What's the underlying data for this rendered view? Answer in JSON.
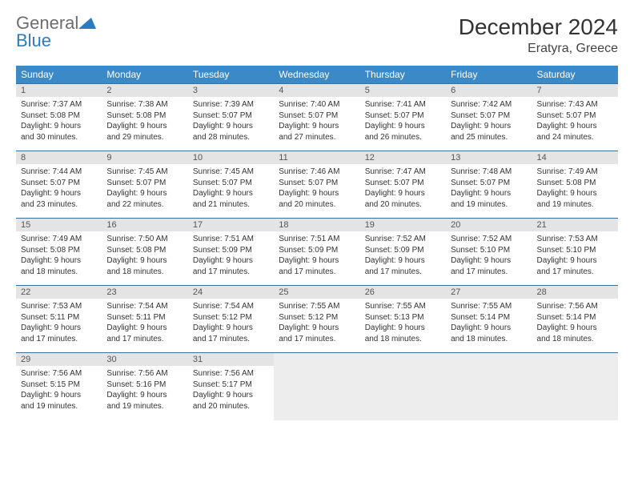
{
  "brand": {
    "part1": "General",
    "part2": "Blue"
  },
  "title": "December 2024",
  "location": "Eratyra, Greece",
  "colors": {
    "header_bg": "#3b89c7",
    "header_text": "#ffffff",
    "daynum_bg": "#e4e4e4",
    "rule": "#3b6f9e",
    "brand_gray": "#6d6d6d",
    "brand_blue": "#2b7bbf"
  },
  "weekdays": [
    "Sunday",
    "Monday",
    "Tuesday",
    "Wednesday",
    "Thursday",
    "Friday",
    "Saturday"
  ],
  "days": [
    {
      "n": "1",
      "sr": "Sunrise: 7:37 AM",
      "ss": "Sunset: 5:08 PM",
      "d1": "Daylight: 9 hours",
      "d2": "and 30 minutes."
    },
    {
      "n": "2",
      "sr": "Sunrise: 7:38 AM",
      "ss": "Sunset: 5:08 PM",
      "d1": "Daylight: 9 hours",
      "d2": "and 29 minutes."
    },
    {
      "n": "3",
      "sr": "Sunrise: 7:39 AM",
      "ss": "Sunset: 5:07 PM",
      "d1": "Daylight: 9 hours",
      "d2": "and 28 minutes."
    },
    {
      "n": "4",
      "sr": "Sunrise: 7:40 AM",
      "ss": "Sunset: 5:07 PM",
      "d1": "Daylight: 9 hours",
      "d2": "and 27 minutes."
    },
    {
      "n": "5",
      "sr": "Sunrise: 7:41 AM",
      "ss": "Sunset: 5:07 PM",
      "d1": "Daylight: 9 hours",
      "d2": "and 26 minutes."
    },
    {
      "n": "6",
      "sr": "Sunrise: 7:42 AM",
      "ss": "Sunset: 5:07 PM",
      "d1": "Daylight: 9 hours",
      "d2": "and 25 minutes."
    },
    {
      "n": "7",
      "sr": "Sunrise: 7:43 AM",
      "ss": "Sunset: 5:07 PM",
      "d1": "Daylight: 9 hours",
      "d2": "and 24 minutes."
    },
    {
      "n": "8",
      "sr": "Sunrise: 7:44 AM",
      "ss": "Sunset: 5:07 PM",
      "d1": "Daylight: 9 hours",
      "d2": "and 23 minutes."
    },
    {
      "n": "9",
      "sr": "Sunrise: 7:45 AM",
      "ss": "Sunset: 5:07 PM",
      "d1": "Daylight: 9 hours",
      "d2": "and 22 minutes."
    },
    {
      "n": "10",
      "sr": "Sunrise: 7:45 AM",
      "ss": "Sunset: 5:07 PM",
      "d1": "Daylight: 9 hours",
      "d2": "and 21 minutes."
    },
    {
      "n": "11",
      "sr": "Sunrise: 7:46 AM",
      "ss": "Sunset: 5:07 PM",
      "d1": "Daylight: 9 hours",
      "d2": "and 20 minutes."
    },
    {
      "n": "12",
      "sr": "Sunrise: 7:47 AM",
      "ss": "Sunset: 5:07 PM",
      "d1": "Daylight: 9 hours",
      "d2": "and 20 minutes."
    },
    {
      "n": "13",
      "sr": "Sunrise: 7:48 AM",
      "ss": "Sunset: 5:07 PM",
      "d1": "Daylight: 9 hours",
      "d2": "and 19 minutes."
    },
    {
      "n": "14",
      "sr": "Sunrise: 7:49 AM",
      "ss": "Sunset: 5:08 PM",
      "d1": "Daylight: 9 hours",
      "d2": "and 19 minutes."
    },
    {
      "n": "15",
      "sr": "Sunrise: 7:49 AM",
      "ss": "Sunset: 5:08 PM",
      "d1": "Daylight: 9 hours",
      "d2": "and 18 minutes."
    },
    {
      "n": "16",
      "sr": "Sunrise: 7:50 AM",
      "ss": "Sunset: 5:08 PM",
      "d1": "Daylight: 9 hours",
      "d2": "and 18 minutes."
    },
    {
      "n": "17",
      "sr": "Sunrise: 7:51 AM",
      "ss": "Sunset: 5:09 PM",
      "d1": "Daylight: 9 hours",
      "d2": "and 17 minutes."
    },
    {
      "n": "18",
      "sr": "Sunrise: 7:51 AM",
      "ss": "Sunset: 5:09 PM",
      "d1": "Daylight: 9 hours",
      "d2": "and 17 minutes."
    },
    {
      "n": "19",
      "sr": "Sunrise: 7:52 AM",
      "ss": "Sunset: 5:09 PM",
      "d1": "Daylight: 9 hours",
      "d2": "and 17 minutes."
    },
    {
      "n": "20",
      "sr": "Sunrise: 7:52 AM",
      "ss": "Sunset: 5:10 PM",
      "d1": "Daylight: 9 hours",
      "d2": "and 17 minutes."
    },
    {
      "n": "21",
      "sr": "Sunrise: 7:53 AM",
      "ss": "Sunset: 5:10 PM",
      "d1": "Daylight: 9 hours",
      "d2": "and 17 minutes."
    },
    {
      "n": "22",
      "sr": "Sunrise: 7:53 AM",
      "ss": "Sunset: 5:11 PM",
      "d1": "Daylight: 9 hours",
      "d2": "and 17 minutes."
    },
    {
      "n": "23",
      "sr": "Sunrise: 7:54 AM",
      "ss": "Sunset: 5:11 PM",
      "d1": "Daylight: 9 hours",
      "d2": "and 17 minutes."
    },
    {
      "n": "24",
      "sr": "Sunrise: 7:54 AM",
      "ss": "Sunset: 5:12 PM",
      "d1": "Daylight: 9 hours",
      "d2": "and 17 minutes."
    },
    {
      "n": "25",
      "sr": "Sunrise: 7:55 AM",
      "ss": "Sunset: 5:12 PM",
      "d1": "Daylight: 9 hours",
      "d2": "and 17 minutes."
    },
    {
      "n": "26",
      "sr": "Sunrise: 7:55 AM",
      "ss": "Sunset: 5:13 PM",
      "d1": "Daylight: 9 hours",
      "d2": "and 18 minutes."
    },
    {
      "n": "27",
      "sr": "Sunrise: 7:55 AM",
      "ss": "Sunset: 5:14 PM",
      "d1": "Daylight: 9 hours",
      "d2": "and 18 minutes."
    },
    {
      "n": "28",
      "sr": "Sunrise: 7:56 AM",
      "ss": "Sunset: 5:14 PM",
      "d1": "Daylight: 9 hours",
      "d2": "and 18 minutes."
    },
    {
      "n": "29",
      "sr": "Sunrise: 7:56 AM",
      "ss": "Sunset: 5:15 PM",
      "d1": "Daylight: 9 hours",
      "d2": "and 19 minutes."
    },
    {
      "n": "30",
      "sr": "Sunrise: 7:56 AM",
      "ss": "Sunset: 5:16 PM",
      "d1": "Daylight: 9 hours",
      "d2": "and 19 minutes."
    },
    {
      "n": "31",
      "sr": "Sunrise: 7:56 AM",
      "ss": "Sunset: 5:17 PM",
      "d1": "Daylight: 9 hours",
      "d2": "and 20 minutes."
    }
  ]
}
